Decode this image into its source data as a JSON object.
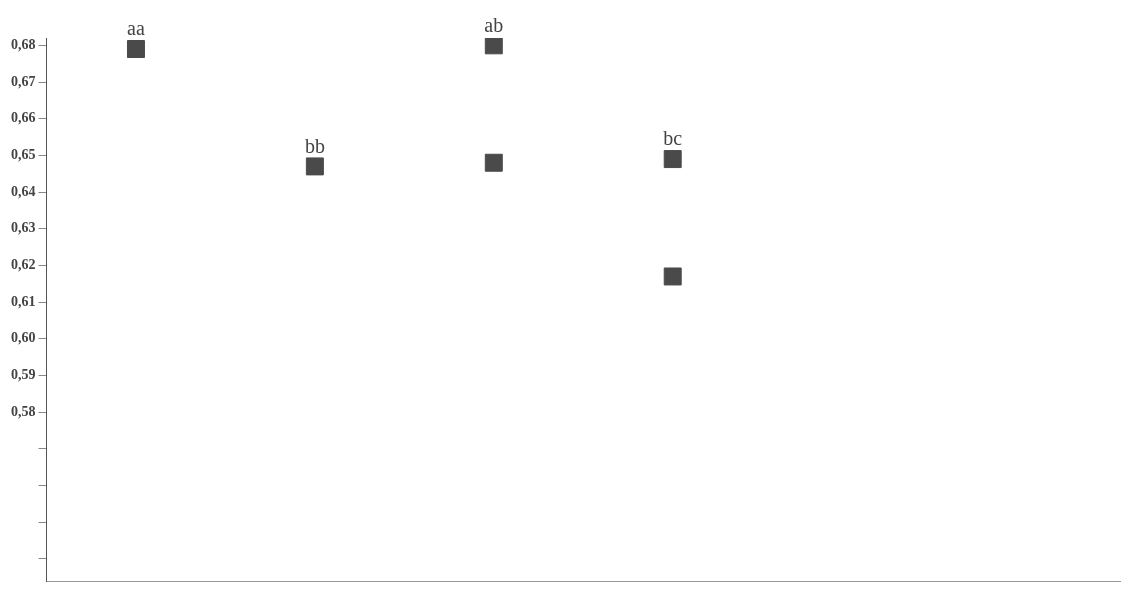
{
  "chart_data": {
    "type": "scatter",
    "categories": [
      null,
      null,
      null,
      null,
      null,
      null
    ],
    "marker": "square",
    "grid": false,
    "tick_labels": "y",
    "ylim": [
      0.534,
      0.682
    ],
    "yticks": [
      {
        "value": 0.54,
        "label": null
      },
      {
        "value": 0.55,
        "label": null
      },
      {
        "value": 0.56,
        "label": null
      },
      {
        "value": 0.57,
        "label": null
      },
      {
        "value": 0.58,
        "label": "0,58"
      },
      {
        "value": 0.59,
        "label": "0,59"
      },
      {
        "value": 0.6,
        "label": "0,60"
      },
      {
        "value": 0.61,
        "label": "0,61"
      },
      {
        "value": 0.62,
        "label": "0,62"
      },
      {
        "value": 0.63,
        "label": "0,63"
      },
      {
        "value": 0.64,
        "label": "0,64"
      },
      {
        "value": 0.65,
        "label": "0,65"
      },
      {
        "value": 0.66,
        "label": "0,66"
      },
      {
        "value": 0.67,
        "label": "0,67"
      },
      {
        "value": 0.68,
        "label": "0,68"
      }
    ],
    "series": [
      {
        "color": "#4a4a4a",
        "values": [
          0.679,
          0.647,
          0.68,
          0.649,
          null,
          null
        ],
        "value_labels": [
          "aa",
          "bb",
          "ab",
          "bc",
          null,
          null
        ]
      },
      {
        "color": "#4a4a4a",
        "values": [
          null,
          null,
          0.648,
          0.617,
          null,
          null
        ]
      }
    ]
  }
}
